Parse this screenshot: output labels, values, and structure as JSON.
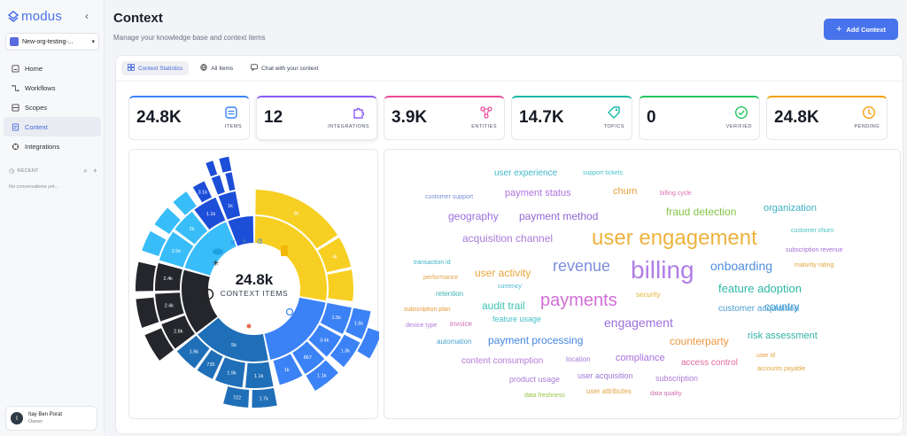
{
  "app": {
    "brand": "modus",
    "org_name": "New-org-testing-..."
  },
  "sidebar": {
    "items": [
      {
        "label": "Home",
        "icon": "home-icon"
      },
      {
        "label": "Workflows",
        "icon": "workflow-icon"
      },
      {
        "label": "Scopes",
        "icon": "scopes-icon"
      },
      {
        "label": "Context",
        "icon": "context-icon",
        "active": true
      },
      {
        "label": "Integrations",
        "icon": "integrations-icon"
      }
    ],
    "recent_label": "RECENT",
    "no_conversations": "No conversations yet..."
  },
  "user": {
    "initial": "I",
    "name": "Itay Ben Porat",
    "role": "Owner"
  },
  "header": {
    "title": "Context",
    "subtitle": "Manage your knowledge base and context items",
    "add_label": "Add Context"
  },
  "tabs": [
    {
      "label": "Context Statistics",
      "active": true
    },
    {
      "label": "All Items"
    },
    {
      "label": "Chat with your context"
    }
  ],
  "stats": [
    {
      "value": "24.8K",
      "label": "ITEMS",
      "color": "#3b82f6",
      "icon": "document-stack-icon"
    },
    {
      "value": "12",
      "label": "INTEGRATIONS",
      "color": "#8b5cf6",
      "icon": "puzzle-icon"
    },
    {
      "value": "3.9K",
      "label": "ENTITIES",
      "color": "#ec4899",
      "icon": "network-icon"
    },
    {
      "value": "14.7K",
      "label": "TOPICS",
      "color": "#14b8a6",
      "icon": "tag-icon"
    },
    {
      "value": "0",
      "label": "VERIFIED",
      "color": "#22c55e",
      "icon": "check-circle-icon"
    },
    {
      "value": "24.8K",
      "label": "PENDING",
      "color": "#f59e0b",
      "icon": "clock-icon"
    }
  ],
  "sunburst": {
    "center_value": "24.8k",
    "center_label": "CONTEXT ITEMS",
    "labels": [
      "4k",
      "8k",
      "3.1k",
      "1.1k",
      "1k",
      "2k",
      "2.5k",
      "2.4k",
      "2.4k",
      "2.8k",
      "5k",
      "1.9k",
      "735",
      "1.9k",
      "1.7k",
      "722",
      "1.1k",
      "1k",
      "658",
      "867",
      "1.1k",
      "1.5k",
      "1.6k",
      "1.3k",
      "1.5k",
      "3.4k"
    ],
    "colors": [
      "#f7cf22",
      "#3b82f6",
      "#1f6fb8",
      "#24262b",
      "#38bdf8",
      "#1d4ed8"
    ]
  },
  "word_cloud": [
    {
      "text": "user experience",
      "color": "#3fb8c8",
      "size": 10
    },
    {
      "text": "support tickets",
      "color": "#46c2cf",
      "size": 7
    },
    {
      "text": "customer support",
      "color": "#7a8fd6",
      "size": 7
    },
    {
      "text": "payment status",
      "color": "#b073de",
      "size": 11
    },
    {
      "text": "churn",
      "color": "#e9a23b",
      "size": 11
    },
    {
      "text": "billing cycle",
      "color": "#de6fb0",
      "size": 7
    },
    {
      "text": "geography",
      "color": "#9d6fdc",
      "size": 12
    },
    {
      "text": "payment method",
      "color": "#9266d3",
      "size": 12
    },
    {
      "text": "fraud detection",
      "color": "#84c545",
      "size": 12
    },
    {
      "text": "organization",
      "color": "#3cb2c4",
      "size": 11
    },
    {
      "text": "customer churn",
      "color": "#45c0c4",
      "size": 7
    },
    {
      "text": "acquisition channel",
      "color": "#a87ad9",
      "size": 12
    },
    {
      "text": "user engagement",
      "color": "#edb33e",
      "size": 24
    },
    {
      "text": "subscription revenue",
      "color": "#a470d8",
      "size": 7
    },
    {
      "text": "transaction id",
      "color": "#3db3c8",
      "size": 7
    },
    {
      "text": "user activity",
      "color": "#e8a53d",
      "size": 12
    },
    {
      "text": "revenue",
      "color": "#7e8fdb",
      "size": 18
    },
    {
      "text": "billing",
      "color": "#b07ee6",
      "size": 28
    },
    {
      "text": "onboarding",
      "color": "#4f8fe0",
      "size": 14
    },
    {
      "text": "maturity rating",
      "color": "#e2a53b",
      "size": 7
    },
    {
      "text": "performance",
      "color": "#e2a24a",
      "size": 7
    },
    {
      "text": "currency",
      "color": "#46b8d0",
      "size": 7
    },
    {
      "text": "feature adoption",
      "color": "#2fb7a6",
      "size": 13
    },
    {
      "text": "retention",
      "color": "#3db3b6",
      "size": 8
    },
    {
      "text": "payments",
      "color": "#d26fd6",
      "size": 20
    },
    {
      "text": "security",
      "color": "#e4b53c",
      "size": 8
    },
    {
      "text": "audit trail",
      "color": "#3ec1b1",
      "size": 12
    },
    {
      "text": "customer acquisition",
      "color": "#4a9ed3",
      "size": 10
    },
    {
      "text": "country",
      "color": "#3a9bd6",
      "size": 12
    },
    {
      "text": "subscription plan",
      "color": "#e49a37",
      "size": 7
    },
    {
      "text": "feature usage",
      "color": "#46c0c8",
      "size": 9
    },
    {
      "text": "engagement",
      "color": "#9d6fdc",
      "size": 14
    },
    {
      "text": "device type",
      "color": "#b27ad8",
      "size": 7
    },
    {
      "text": "invoice",
      "color": "#cf6fb6",
      "size": 8
    },
    {
      "text": "risk assessment",
      "color": "#33b3a8",
      "size": 11
    },
    {
      "text": "automation",
      "color": "#4aa4cf",
      "size": 8
    },
    {
      "text": "payment processing",
      "color": "#4385df",
      "size": 12
    },
    {
      "text": "counterparty",
      "color": "#ee9640",
      "size": 12
    },
    {
      "text": "user id",
      "color": "#e39b3b",
      "size": 7
    },
    {
      "text": "content consumption",
      "color": "#b579d8",
      "size": 10
    },
    {
      "text": "location",
      "color": "#a77ed9",
      "size": 8
    },
    {
      "text": "compliance",
      "color": "#a86fdc",
      "size": 11
    },
    {
      "text": "access control",
      "color": "#dd6a9a",
      "size": 10
    },
    {
      "text": "accounts payable",
      "color": "#e0a540",
      "size": 7
    },
    {
      "text": "product usage",
      "color": "#a97ed7",
      "size": 9
    },
    {
      "text": "user acquisition",
      "color": "#9b79d6",
      "size": 9
    },
    {
      "text": "subscription",
      "color": "#b07ad8",
      "size": 9
    },
    {
      "text": "data freshness",
      "color": "#9ac547",
      "size": 7
    },
    {
      "text": "user attributes",
      "color": "#e3a243",
      "size": 8
    },
    {
      "text": "data quality",
      "color": "#d26faf",
      "size": 7
    }
  ]
}
